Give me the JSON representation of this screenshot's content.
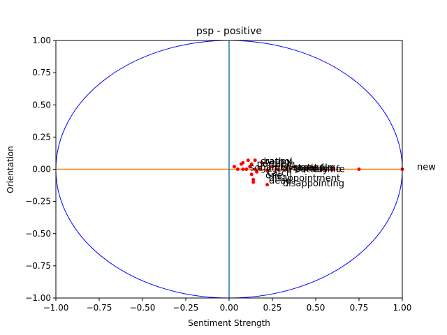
{
  "chart_data": {
    "type": "scatter",
    "title": "psp - positive",
    "xlabel": "Sentiment Strength",
    "ylabel": "Orientation",
    "xlim": [
      -1.0,
      1.0
    ],
    "ylim": [
      -1.0,
      1.0
    ],
    "x_ticks": [
      "−1.00",
      "−0.75",
      "−0.50",
      "−0.25",
      "0.00",
      "0.25",
      "0.50",
      "0.75",
      "1.00"
    ],
    "y_ticks": [
      "1.00",
      "0.75",
      "0.50",
      "0.25",
      "0.00",
      "−0.25",
      "−0.50",
      "−0.75",
      "−1.00"
    ],
    "grid": false,
    "colors": {
      "points": "#ff0000",
      "circle": "#0000ff",
      "vertical_line": "#1f77b4",
      "horizontal_line": "#ff7f0e"
    },
    "unit_circle": true,
    "points": [
      {
        "x": 1.0,
        "y": 0.0,
        "label": "new"
      },
      {
        "x": 0.75,
        "y": 0.0,
        "label": ""
      },
      {
        "x": 0.6,
        "y": 0.0,
        "label": ""
      },
      {
        "x": 0.54,
        "y": 0.0,
        "label": ""
      },
      {
        "x": 0.5,
        "y": 0.0,
        "label": ""
      },
      {
        "x": 0.45,
        "y": 0.0,
        "label": ""
      },
      {
        "x": 0.38,
        "y": 0.02,
        "label": ""
      },
      {
        "x": 0.33,
        "y": 0.0,
        "label": ""
      },
      {
        "x": 0.28,
        "y": 0.0,
        "label": ""
      },
      {
        "x": 0.25,
        "y": 0.02,
        "label": ""
      },
      {
        "x": 0.22,
        "y": -0.01,
        "label": ""
      },
      {
        "x": 0.18,
        "y": 0.0,
        "label": ""
      },
      {
        "x": 0.15,
        "y": 0.0,
        "label": ""
      },
      {
        "x": 0.12,
        "y": 0.02,
        "label": ""
      },
      {
        "x": 0.1,
        "y": 0.0,
        "label": ""
      },
      {
        "x": 0.08,
        "y": 0.0,
        "label": ""
      },
      {
        "x": 0.05,
        "y": 0.0,
        "label": ""
      },
      {
        "x": 0.03,
        "y": 0.02,
        "label": ""
      },
      {
        "x": 0.11,
        "y": 0.07,
        "label": ""
      },
      {
        "x": 0.15,
        "y": 0.07,
        "label": ""
      },
      {
        "x": 0.19,
        "y": 0.05,
        "label": ""
      },
      {
        "x": 0.08,
        "y": 0.05,
        "label": ""
      },
      {
        "x": 0.07,
        "y": 0.04,
        "label": ""
      },
      {
        "x": 0.13,
        "y": 0.04,
        "label": ""
      },
      {
        "x": 0.16,
        "y": -0.02,
        "label": ""
      },
      {
        "x": 0.13,
        "y": -0.04,
        "label": ""
      },
      {
        "x": 0.14,
        "y": -0.08,
        "label": ""
      },
      {
        "x": 0.14,
        "y": -0.1,
        "label": ""
      },
      {
        "x": 0.22,
        "y": -0.12,
        "label": ""
      }
    ],
    "annotations": [
      {
        "x": 0.18,
        "y": 0.06,
        "text": "crappy"
      },
      {
        "x": 0.2,
        "y": 0.06,
        "text": "bathol"
      },
      {
        "x": 0.16,
        "y": 0.04,
        "text": "portable"
      },
      {
        "x": 0.12,
        "y": 0.01,
        "text": "sony playstation"
      },
      {
        "x": 0.18,
        "y": 0.01,
        "text": "games great fun"
      },
      {
        "x": 0.3,
        "y": 0.01,
        "text": "cheaper"
      },
      {
        "x": 0.4,
        "y": 0.01,
        "text": "console"
      },
      {
        "x": 0.38,
        "y": 0.0,
        "text": "battery life"
      },
      {
        "x": 0.48,
        "y": 0.0,
        "text": "casino"
      },
      {
        "x": 0.22,
        "y": -0.03,
        "text": "catch"
      },
      {
        "x": 0.21,
        "y": -0.05,
        "text": "one"
      },
      {
        "x": 0.23,
        "y": -0.07,
        "text": "disappointment"
      },
      {
        "x": 0.23,
        "y": -0.09,
        "text": "dead"
      },
      {
        "x": 0.31,
        "y": -0.11,
        "text": "disappointing"
      }
    ]
  }
}
